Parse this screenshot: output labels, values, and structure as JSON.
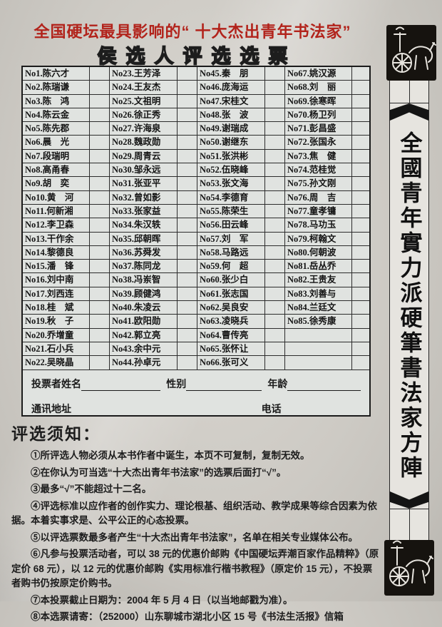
{
  "title": {
    "line1": "全国硬坛最具影响的“ 十大杰出青年书法家”",
    "line2": "侯选人评选选票"
  },
  "table": {
    "columns": [
      [
        "No1.陈六才",
        "No2.陈瑞谦",
        "No3.陈　鸿",
        "No4.陈云金",
        "No5.陈先郡",
        "No6.晨　光",
        "No7.段瑞明",
        "No8.高甬春",
        "No9.胡　奕",
        "No10.黄　河",
        "No11.何新湘",
        "No12.李卫森",
        "No13.干作余",
        "No14.黎德良",
        "No15.潘　锋",
        "No16.刘中南",
        "No17.刘西连",
        "No18.桂　斌",
        "No19.秋　子",
        "No20.乔增童",
        "No21.石小兵",
        "No22.吴晓晶"
      ],
      [
        "No23.王芳泽",
        "No24.王友杰",
        "No25.文祖明",
        "No26.徐正秀",
        "No27.许海泉",
        "No28.魏政勋",
        "No29.周青云",
        "No30.邹永远",
        "No31.张亚平",
        "No32.曾如影",
        "No33.张家益",
        "No34.朱汉轶",
        "No35.邱朝晖",
        "No36.苏舜发",
        "No37.陈同龙",
        "No38.冯岽智",
        "No39.顾健鸿",
        "No40.朱凌云",
        "No41.欧阳勋",
        "No42.郭立亮",
        "No43.余中元",
        "No44.孙卓元"
      ],
      [
        "No45.秦　朋",
        "No46.庞海运",
        "No47.宋桂文",
        "No48.张　波",
        "No49.谢瑞成",
        "No50.谢继东",
        "No51.张洪彬",
        "No52.伍晓峰",
        "No53.张文海",
        "No54.李德育",
        "No55.陈荣生",
        "No56.田云峰",
        "No57.刘　军",
        "No58.马路远",
        "No59.何　超",
        "No60.张少白",
        "No61.张志国",
        "No62.吴良安",
        "No63.凌晓兵",
        "No64.曹传亮",
        "No65.张怀让",
        "No66.张可义"
      ],
      [
        "No67.姚汉源",
        "No68.刘　丽",
        "No69.徐寒晖",
        "No70.杨卫列",
        "No71.彭昌盛",
        "No72.张国永",
        "No73.焦　健",
        "No74.范桂觉",
        "No75.孙文刚",
        "No76.周　吉",
        "No77.童孝镛",
        "No78.马功玉",
        "No79.柯翰文",
        "No80.何朝波",
        "No81.岳丛乔",
        "No82.王贵友",
        "No83.刘善与",
        "No84.兰廷文",
        "No85.徐秀康",
        "",
        "",
        ""
      ]
    ]
  },
  "form": {
    "name_label": "投票者姓名",
    "gender_label": "性别",
    "age_label": "年龄",
    "address_label": "通讯地址",
    "phone_label": "电话"
  },
  "notice": {
    "heading": "评选须知：",
    "items": [
      "①所评选人物必须从本书作者中诞生，本页不可复制，复制无效。",
      "②在你认为可当选“十大杰出青年书法家”的选票后面打“√”。",
      "③最多“√”不能超过十二名。",
      "④评选标准以应作者的创作实力、理论根基、组织活动、教学成果等综合因素为依据。本着实事求是、公平公正的心态投票。",
      "⑤以评选票数最多者产生“十大杰出青年书法家”，名单在相关专业媒体公布。",
      "⑥凡参与投票活动者，可以 38 元的优惠价邮购《中国硬坛弄潮百家作品精粹》（原定价 68 元），以 12 元的优惠价邮购《实用标准行楷书教程》（原定价 15 元），不投票者购书仍按原定价购书。",
      "⑦本投票截止日期为：2004 年 5 月 4 日（以当地邮戳为准）。",
      "⑧本选票请寄：（252000）山东聊城市湖北小区 15 号《书法生活报》信箱"
    ]
  },
  "banner": {
    "text": "全國青年實力派硬筆書法家方陣"
  },
  "colors": {
    "title_red": "#b2231b",
    "paper": "#cdcac4",
    "ink": "#1b1b1b"
  }
}
